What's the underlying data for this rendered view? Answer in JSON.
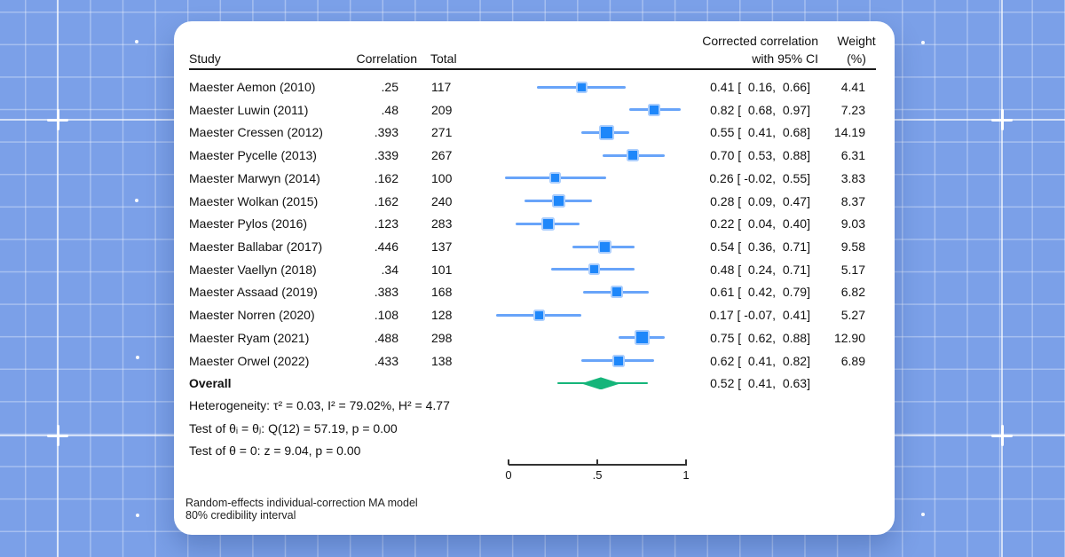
{
  "table": {
    "headers": {
      "study": "Study",
      "correlation": "Correlation",
      "total": "Total",
      "ci_line1": "Corrected correlation",
      "ci_line2": "with 95% CI",
      "weight_line1": "Weight",
      "weight_line2": "(%)"
    }
  },
  "chart_data": {
    "type": "forest",
    "xlim": [
      0,
      1
    ],
    "axis": {
      "ticks": [
        {
          "v": 0,
          "label": "0"
        },
        {
          "v": 0.5,
          "label": ".5"
        },
        {
          "v": 1,
          "label": "1"
        }
      ]
    },
    "studies": [
      {
        "study": "Maester Aemon (2010)",
        "correlation": ".25",
        "total": "117",
        "est": 0.41,
        "lo": 0.16,
        "hi": 0.66,
        "ci_label": "0.41 [  0.16,  0.66]",
        "weight": "4.41"
      },
      {
        "study": "Maester Luwin (2011)",
        "correlation": ".48",
        "total": "209",
        "est": 0.82,
        "lo": 0.68,
        "hi": 0.97,
        "ci_label": "0.82 [  0.68,  0.97]",
        "weight": "7.23"
      },
      {
        "study": "Maester Cressen (2012)",
        "correlation": ".393",
        "total": "271",
        "est": 0.55,
        "lo": 0.41,
        "hi": 0.68,
        "ci_label": "0.55 [  0.41,  0.68]",
        "weight": "14.19"
      },
      {
        "study": "Maester Pycelle (2013)",
        "correlation": ".339",
        "total": "267",
        "est": 0.7,
        "lo": 0.53,
        "hi": 0.88,
        "ci_label": "0.70 [  0.53,  0.88]",
        "weight": "6.31"
      },
      {
        "study": "Maester Marwyn (2014)",
        "correlation": ".162",
        "total": "100",
        "est": 0.26,
        "lo": -0.02,
        "hi": 0.55,
        "ci_label": "0.26 [ -0.02,  0.55]",
        "weight": "3.83"
      },
      {
        "study": "Maester Wolkan (2015)",
        "correlation": ".162",
        "total": "240",
        "est": 0.28,
        "lo": 0.09,
        "hi": 0.47,
        "ci_label": "0.28 [  0.09,  0.47]",
        "weight": "8.37"
      },
      {
        "study": "Maester Pylos (2016)",
        "correlation": ".123",
        "total": "283",
        "est": 0.22,
        "lo": 0.04,
        "hi": 0.4,
        "ci_label": "0.22 [  0.04,  0.40]",
        "weight": "9.03"
      },
      {
        "study": "Maester Ballabar (2017)",
        "correlation": ".446",
        "total": "137",
        "est": 0.54,
        "lo": 0.36,
        "hi": 0.71,
        "ci_label": "0.54 [  0.36,  0.71]",
        "weight": "9.58"
      },
      {
        "study": "Maester Vaellyn (2018)",
        "correlation": ".34",
        "total": "101",
        "est": 0.48,
        "lo": 0.24,
        "hi": 0.71,
        "ci_label": "0.48 [  0.24,  0.71]",
        "weight": "5.17"
      },
      {
        "study": "Maester Assaad (2019)",
        "correlation": ".383",
        "total": "168",
        "est": 0.61,
        "lo": 0.42,
        "hi": 0.79,
        "ci_label": "0.61 [  0.42,  0.79]",
        "weight": "6.82"
      },
      {
        "study": "Maester Norren (2020)",
        "correlation": ".108",
        "total": "128",
        "est": 0.17,
        "lo": -0.07,
        "hi": 0.41,
        "ci_label": "0.17 [ -0.07,  0.41]",
        "weight": "5.27"
      },
      {
        "study": "Maester Ryam (2021)",
        "correlation": ".488",
        "total": "298",
        "est": 0.75,
        "lo": 0.62,
        "hi": 0.88,
        "ci_label": "0.75 [  0.62,  0.88]",
        "weight": "12.90"
      },
      {
        "study": "Maester Orwel (2022)",
        "correlation": ".433",
        "total": "138",
        "est": 0.62,
        "lo": 0.41,
        "hi": 0.82,
        "ci_label": "0.62 [  0.41,  0.82]",
        "weight": "6.89"
      }
    ],
    "overall": {
      "label": "Overall",
      "est": 0.52,
      "lo": 0.41,
      "hi": 0.63,
      "ci_label": "0.52 [  0.41,  0.63]",
      "cred_lo": 0.275,
      "cred_hi": 0.785
    },
    "stats": [
      "Heterogeneity: τ² = 0.03, I² = 79.02%, H² = 4.77",
      "Test of θᵢ = θⱼ: Q(12) = 57.19, p = 0.00",
      "Test of θ = 0: z = 9.04, p = 0.00"
    ],
    "footer": [
      "Random-effects individual-correction MA model",
      "80% credibility interval"
    ],
    "colors": {
      "marker": "#1e87fa",
      "marker_halo": "#abcefd",
      "ci_line": "#68a4f9",
      "diamond": "#15b57a",
      "axis": "#333333",
      "background": "#7ba0e8"
    }
  }
}
